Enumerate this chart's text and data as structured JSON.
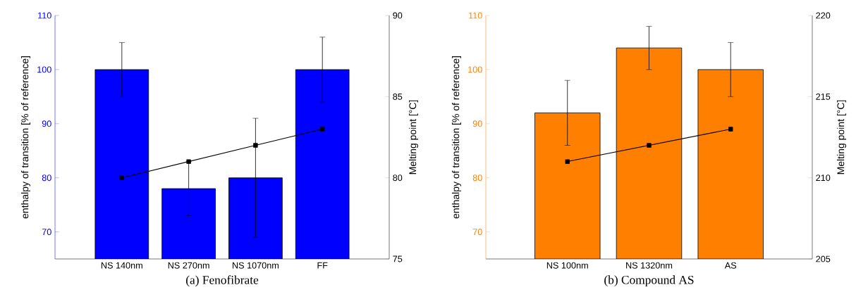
{
  "chart_data": [
    {
      "type": "bar",
      "title": "(a)  Fenofibrate",
      "ylabel": "enthalpy of transition [% of reference]",
      "y2label": "Melting point [°C]",
      "categories": [
        "NS 140nm",
        "NS 270nm",
        "NS 1070nm",
        "FF"
      ],
      "ylim": [
        65,
        110
      ],
      "yticks": [
        70,
        80,
        90,
        100,
        110
      ],
      "y2lim": [
        75,
        90
      ],
      "y2ticks": [
        75,
        80,
        85,
        90
      ],
      "marker": "square",
      "series": [
        {
          "color": "#0000ff",
          "values": [
            100,
            78,
            80,
            100
          ],
          "errors": [
            5,
            5,
            11,
            6
          ]
        },
        {
          "type": "line",
          "axis": "y2",
          "color": "#000000",
          "values": [
            80,
            81,
            82,
            83
          ]
        }
      ]
    },
    {
      "type": "bar",
      "title": "(b)  Compound AS",
      "ylabel": "enthalpy of transition [% of reference]",
      "y2label": "Melting point [°C]",
      "categories": [
        "NS 100nm",
        "NS 1320nm",
        "AS"
      ],
      "ylim": [
        65,
        110
      ],
      "yticks": [
        70,
        80,
        90,
        100,
        110
      ],
      "y2lim": [
        205,
        220
      ],
      "y2ticks": [
        205,
        210,
        215,
        220
      ],
      "marker": "square",
      "series": [
        {
          "color": "#ff8000",
          "values": [
            92,
            104,
            100
          ],
          "errors": [
            6,
            4,
            5
          ]
        },
        {
          "type": "line",
          "axis": "y2",
          "color": "#000000",
          "values": [
            211,
            212,
            213
          ]
        }
      ]
    }
  ]
}
